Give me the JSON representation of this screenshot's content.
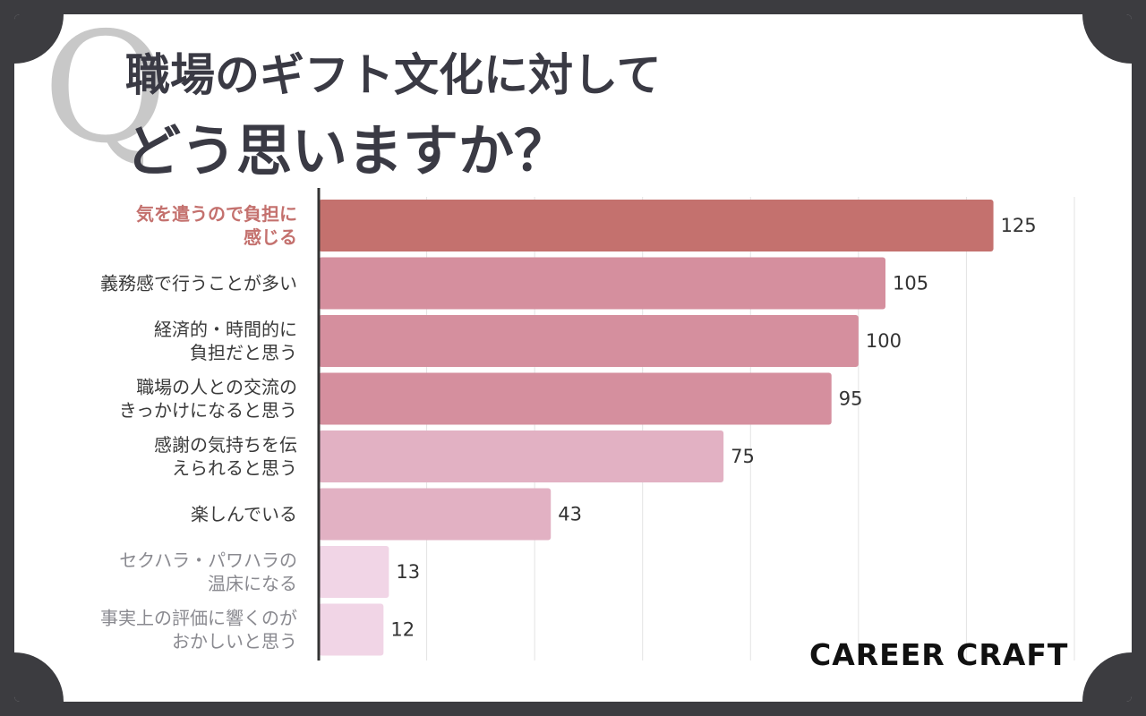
{
  "q_mark": "Q",
  "title": {
    "line1": "職場のギフト文化に対して",
    "line2": "どう思いますか？"
  },
  "brand": "CAREER CRAFT",
  "chart_data": {
    "type": "bar",
    "orientation": "horizontal",
    "title": "職場のギフト文化に対してどう思いますか？",
    "categories": [
      [
        "気を遣うので負担に",
        "感じる"
      ],
      [
        "義務感で行うことが多い"
      ],
      [
        "経済的・時間的に",
        "負担だと思う"
      ],
      [
        "職場の人との交流の",
        "きっかけになると思う"
      ],
      [
        "感謝の気持ちを伝",
        "えられると思う"
      ],
      [
        "楽しんでいる"
      ],
      [
        "セクハラ・パワハラの",
        "温床になる"
      ],
      [
        "事実上の評価に響くのが",
        "おかしいと思う"
      ]
    ],
    "values": [
      125,
      105,
      100,
      95,
      75,
      43,
      13,
      12
    ],
    "bar_colors": [
      "#c4716e",
      "#d58f9e",
      "#d58f9e",
      "#d58f9e",
      "#e2b1c3",
      "#e2b1c3",
      "#f1d5e6",
      "#f1d5e6"
    ],
    "label_colors": [
      "#c4716e",
      "#3a3a3a",
      "#3a3a3a",
      "#3a3a3a",
      "#3a3a3a",
      "#3a3a3a",
      "#8a8a90",
      "#8a8a90"
    ],
    "xlim": [
      0,
      140
    ],
    "grid": true
  }
}
